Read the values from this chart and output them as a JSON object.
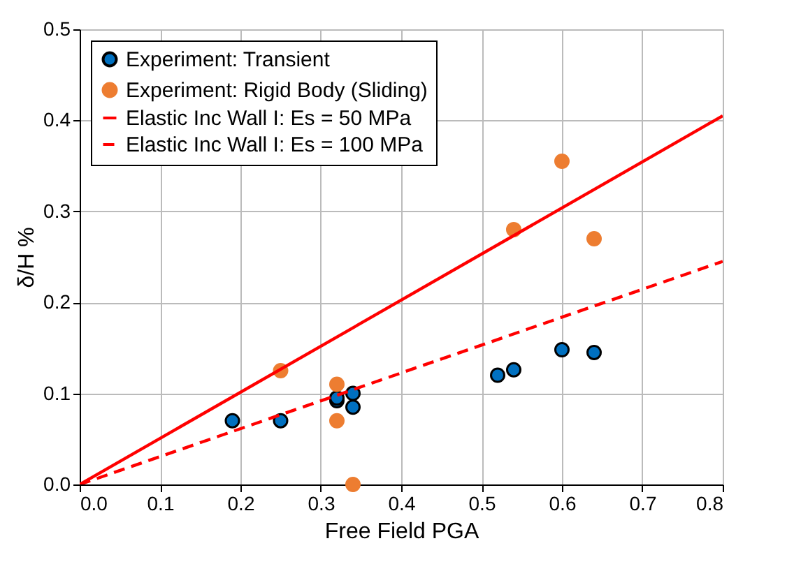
{
  "chart_data": {
    "type": "scatter",
    "xlabel": "Free Field PGA",
    "ylabel": "δ/H %",
    "xlim": [
      0,
      0.8
    ],
    "ylim": [
      0,
      0.5
    ],
    "xticks": [
      {
        "value": 0,
        "label": "0.0"
      },
      0.1,
      0.2,
      0.3,
      0.4,
      0.5,
      0.6,
      0.7,
      {
        "value": 0.8,
        "label": "0.8"
      }
    ],
    "yticks": [
      {
        "value": 0,
        "label": "0.0"
      },
      0.1,
      0.2,
      0.3,
      0.4,
      {
        "value": 0.5,
        "label": "0.5"
      }
    ],
    "grid": true,
    "legend": "top left",
    "marker": "circle",
    "series": [
      {
        "name": "Experiment: Transient",
        "color": "#0070c0",
        "x": [
          0.19,
          0.25,
          0.32,
          0.32,
          0.34,
          0.34,
          0.52,
          0.54,
          0.6,
          0.64
        ],
        "values": [
          0.07,
          0.07,
          0.092,
          0.095,
          0.1,
          0.085,
          0.12,
          0.126,
          0.148,
          0.145
        ]
      },
      {
        "name": "Experiment: Rigid Body (Sliding)",
        "color": "#ed7d31",
        "x": [
          0.25,
          0.32,
          0.32,
          0.34,
          0.54,
          0.6,
          0.64
        ],
        "values": [
          0.125,
          0.11,
          0.07,
          0.0,
          0.28,
          0.355,
          0.27
        ]
      },
      {
        "name": "Elastic Inc Wall I: Es = 50 MPa",
        "type": "line",
        "line_style": "solid",
        "marker": "none",
        "color": "#ff0000",
        "x": [
          0,
          0.8
        ],
        "values": [
          0,
          0.405
        ]
      },
      {
        "name": "Elastic Inc Wall I: Es = 100 MPa",
        "type": "line",
        "line_style": "dashed",
        "marker": "none",
        "color": "#ff0000",
        "x": [
          0,
          0.8
        ],
        "values": [
          0,
          0.245
        ]
      }
    ]
  }
}
